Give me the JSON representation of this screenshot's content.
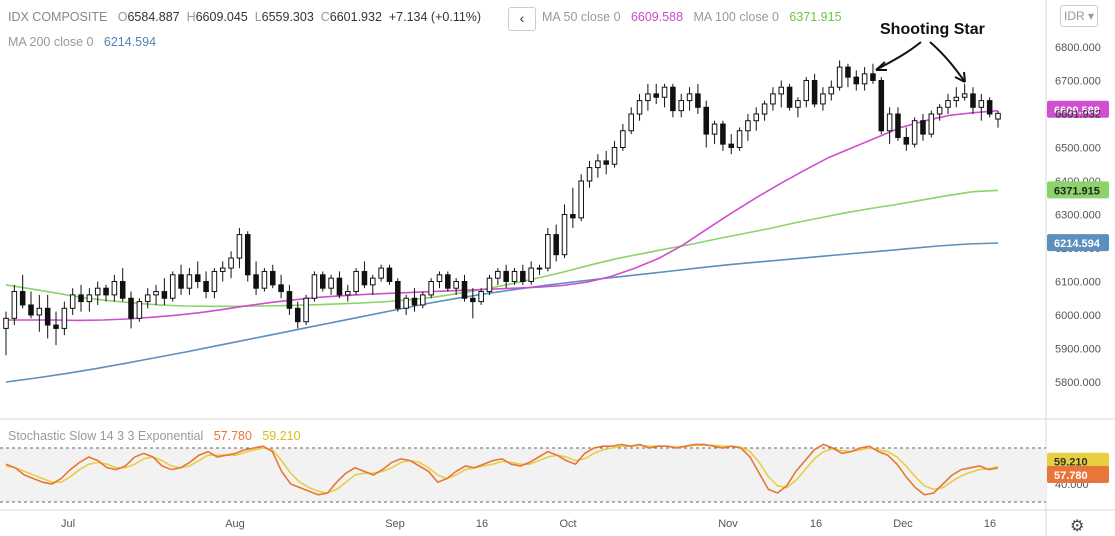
{
  "header": {
    "symbol": "IDX COMPOSITE",
    "open_label": "O",
    "open": "6584.887",
    "high_label": "H",
    "high": "6609.045",
    "low_label": "L",
    "low": "6559.303",
    "close_label": "C",
    "close": "6601.932",
    "change": "+7.134 (+0.11%)",
    "back_icon": "chevron-left-icon",
    "ma50_label": "MA 50 close 0",
    "ma50_value": "6609.588",
    "ma100_label": "MA 100 close 0",
    "ma100_value": "6371.915",
    "ma200_label": "MA 200 close 0",
    "ma200_value": "6214.594",
    "currency": "IDR"
  },
  "stoch": {
    "label": "Stochastic Slow 14 3 3 Exponential",
    "k": "57.780",
    "d": "59.210"
  },
  "annotation": "Shooting Star",
  "settings_icon": "gear-icon",
  "colors": {
    "ma50": "#d04ed0",
    "ma100": "#8bd46b",
    "ma200": "#5b8fbd",
    "stochK": "#e8763a",
    "stochD": "#e8cf42",
    "candle": "#111111"
  },
  "chart_data": {
    "type": "candlestick",
    "x_tick_labels": [
      "Jul",
      "Aug",
      "Sep",
      "16",
      "Oct",
      "Nov",
      "16",
      "Dec",
      "16"
    ],
    "y_tick_labels": [
      "6800.000",
      "6700.000",
      "6600.000",
      "6500.000",
      "6400.000",
      "6300.000",
      "6200.000",
      "6100.000",
      "6000.000",
      "5900.000",
      "5800.000"
    ],
    "ylim": [
      5740,
      6860
    ],
    "price_labels": [
      {
        "value": 6609.588,
        "text": "6609.588",
        "series": "ma50"
      },
      {
        "value": 6601.932,
        "text": "6601.932",
        "series": "last"
      },
      {
        "value": 6371.915,
        "text": "6371.915",
        "series": "ma100"
      },
      {
        "value": 6214.594,
        "text": "6214.594",
        "series": "ma200"
      }
    ],
    "candles_ohlc": [
      [
        5960,
        6010,
        5880,
        5990
      ],
      [
        5990,
        6090,
        5970,
        6070
      ],
      [
        6070,
        6120,
        6020,
        6030
      ],
      [
        6030,
        6070,
        5990,
        6000
      ],
      [
        6000,
        6060,
        5950,
        6020
      ],
      [
        6020,
        6060,
        5930,
        5970
      ],
      [
        5970,
        6010,
        5910,
        5960
      ],
      [
        5960,
        6040,
        5940,
        6020
      ],
      [
        6020,
        6080,
        6000,
        6060
      ],
      [
        6060,
        6090,
        6010,
        6040
      ],
      [
        6040,
        6080,
        6010,
        6060
      ],
      [
        6060,
        6100,
        6030,
        6080
      ],
      [
        6080,
        6090,
        6040,
        6060
      ],
      [
        6060,
        6120,
        6040,
        6100
      ],
      [
        6100,
        6140,
        6040,
        6050
      ],
      [
        6050,
        6070,
        5960,
        5990
      ],
      [
        5990,
        6050,
        5980,
        6040
      ],
      [
        6040,
        6080,
        6020,
        6060
      ],
      [
        6060,
        6090,
        6030,
        6070
      ],
      [
        6070,
        6110,
        6030,
        6050
      ],
      [
        6050,
        6130,
        6040,
        6120
      ],
      [
        6120,
        6150,
        6060,
        6080
      ],
      [
        6080,
        6140,
        6060,
        6120
      ],
      [
        6120,
        6160,
        6080,
        6100
      ],
      [
        6100,
        6130,
        6050,
        6070
      ],
      [
        6070,
        6140,
        6050,
        6130
      ],
      [
        6130,
        6160,
        6100,
        6140
      ],
      [
        6140,
        6190,
        6110,
        6170
      ],
      [
        6170,
        6260,
        6140,
        6240
      ],
      [
        6240,
        6250,
        6100,
        6120
      ],
      [
        6120,
        6160,
        6060,
        6080
      ],
      [
        6080,
        6140,
        6070,
        6130
      ],
      [
        6130,
        6150,
        6080,
        6090
      ],
      [
        6090,
        6120,
        6050,
        6070
      ],
      [
        6070,
        6090,
        6000,
        6020
      ],
      [
        6020,
        6040,
        5960,
        5980
      ],
      [
        5980,
        6060,
        5970,
        6050
      ],
      [
        6050,
        6130,
        6040,
        6120
      ],
      [
        6120,
        6130,
        6070,
        6080
      ],
      [
        6080,
        6120,
        6060,
        6110
      ],
      [
        6110,
        6130,
        6050,
        6060
      ],
      [
        6060,
        6090,
        6040,
        6070
      ],
      [
        6070,
        6140,
        6060,
        6130
      ],
      [
        6130,
        6160,
        6080,
        6090
      ],
      [
        6090,
        6120,
        6060,
        6110
      ],
      [
        6110,
        6150,
        6100,
        6140
      ],
      [
        6140,
        6150,
        6090,
        6100
      ],
      [
        6100,
        6110,
        6010,
        6020
      ],
      [
        6020,
        6060,
        6000,
        6050
      ],
      [
        6050,
        6080,
        6010,
        6030
      ],
      [
        6030,
        6070,
        6020,
        6060
      ],
      [
        6060,
        6110,
        6050,
        6100
      ],
      [
        6100,
        6130,
        6080,
        6120
      ],
      [
        6120,
        6130,
        6070,
        6080
      ],
      [
        6080,
        6110,
        6060,
        6100
      ],
      [
        6100,
        6120,
        6040,
        6050
      ],
      [
        6050,
        6080,
        5990,
        6040
      ],
      [
        6040,
        6080,
        6030,
        6070
      ],
      [
        6070,
        6120,
        6060,
        6110
      ],
      [
        6110,
        6140,
        6090,
        6130
      ],
      [
        6130,
        6150,
        6080,
        6100
      ],
      [
        6100,
        6140,
        6090,
        6130
      ],
      [
        6130,
        6150,
        6090,
        6100
      ],
      [
        6100,
        6160,
        6090,
        6140
      ],
      [
        6140,
        6150,
        6120,
        6140
      ],
      [
        6140,
        6260,
        6130,
        6240
      ],
      [
        6240,
        6270,
        6160,
        6180
      ],
      [
        6180,
        6330,
        6170,
        6300
      ],
      [
        6300,
        6380,
        6260,
        6290
      ],
      [
        6290,
        6420,
        6280,
        6400
      ],
      [
        6400,
        6460,
        6380,
        6440
      ],
      [
        6440,
        6480,
        6410,
        6460
      ],
      [
        6460,
        6490,
        6420,
        6450
      ],
      [
        6450,
        6520,
        6440,
        6500
      ],
      [
        6500,
        6570,
        6490,
        6550
      ],
      [
        6550,
        6620,
        6540,
        6600
      ],
      [
        6600,
        6660,
        6580,
        6640
      ],
      [
        6640,
        6690,
        6610,
        6660
      ],
      [
        6660,
        6690,
        6630,
        6650
      ],
      [
        6650,
        6690,
        6620,
        6680
      ],
      [
        6680,
        6690,
        6590,
        6610
      ],
      [
        6610,
        6660,
        6590,
        6640
      ],
      [
        6640,
        6680,
        6610,
        6660
      ],
      [
        6660,
        6690,
        6600,
        6620
      ],
      [
        6620,
        6640,
        6500,
        6540
      ],
      [
        6540,
        6580,
        6510,
        6570
      ],
      [
        6570,
        6580,
        6490,
        6510
      ],
      [
        6510,
        6540,
        6480,
        6500
      ],
      [
        6500,
        6560,
        6490,
        6550
      ],
      [
        6550,
        6600,
        6520,
        6580
      ],
      [
        6580,
        6620,
        6550,
        6600
      ],
      [
        6600,
        6640,
        6580,
        6630
      ],
      [
        6630,
        6680,
        6610,
        6660
      ],
      [
        6660,
        6700,
        6620,
        6680
      ],
      [
        6680,
        6690,
        6610,
        6620
      ],
      [
        6620,
        6650,
        6590,
        6640
      ],
      [
        6640,
        6710,
        6620,
        6700
      ],
      [
        6700,
        6720,
        6620,
        6630
      ],
      [
        6630,
        6680,
        6610,
        6660
      ],
      [
        6660,
        6700,
        6640,
        6680
      ],
      [
        6680,
        6760,
        6670,
        6740
      ],
      [
        6740,
        6750,
        6680,
        6710
      ],
      [
        6710,
        6730,
        6670,
        6690
      ],
      [
        6690,
        6740,
        6670,
        6720
      ],
      [
        6720,
        6750,
        6690,
        6700
      ],
      [
        6700,
        6710,
        6540,
        6550
      ],
      [
        6550,
        6620,
        6510,
        6600
      ],
      [
        6600,
        6620,
        6520,
        6530
      ],
      [
        6530,
        6560,
        6490,
        6510
      ],
      [
        6510,
        6590,
        6500,
        6580
      ],
      [
        6580,
        6600,
        6520,
        6540
      ],
      [
        6540,
        6610,
        6530,
        6600
      ],
      [
        6600,
        6630,
        6580,
        6620
      ],
      [
        6620,
        6660,
        6600,
        6640
      ],
      [
        6640,
        6680,
        6620,
        6650
      ],
      [
        6650,
        6690,
        6640,
        6660
      ],
      [
        6660,
        6680,
        6600,
        6620
      ],
      [
        6620,
        6660,
        6580,
        6640
      ],
      [
        6640,
        6650,
        6590,
        6600
      ],
      [
        6584.887,
        6609.045,
        6559.303,
        6601.932
      ]
    ],
    "ma50": [
      5985,
      5985,
      5985,
      5984,
      5985,
      5988,
      5993,
      5999,
      6007,
      6017,
      6028,
      6038,
      6046,
      6053,
      6058,
      6062,
      6065,
      6068,
      6071,
      6074,
      6077,
      6080,
      6083,
      6088,
      6098,
      6115,
      6140,
      6170,
      6210,
      6258,
      6305,
      6350,
      6392,
      6432,
      6470,
      6500,
      6530,
      6560,
      6580,
      6596,
      6604,
      6610
    ],
    "ma100": [
      6090,
      6078,
      6065,
      6052,
      6043,
      6036,
      6030,
      6027,
      6026,
      6026,
      6027,
      6028,
      6030,
      6033,
      6036,
      6040,
      6046,
      6055,
      6067,
      6080,
      6095,
      6112,
      6130,
      6150,
      6168,
      6183,
      6198,
      6212,
      6228,
      6243,
      6258,
      6275,
      6290,
      6305,
      6318,
      6330,
      6343,
      6356,
      6368,
      6372
    ],
    "ma200": [
      5800,
      5812,
      5825,
      5840,
      5856,
      5873,
      5890,
      5908,
      5926,
      5944,
      5962,
      5980,
      5998,
      6016,
      6034,
      6050,
      6064,
      6077,
      6089,
      6100,
      6110,
      6120,
      6130,
      6140,
      6150,
      6158,
      6166,
      6174,
      6182,
      6190,
      6198,
      6206,
      6212,
      6215
    ],
    "stoch_range": [
      0,
      100
    ],
    "stoch_levels": [
      80,
      20
    ],
    "stoch_tick_label": "40.000",
    "stoch_k": [
      62,
      58,
      50,
      46,
      42,
      40,
      46,
      56,
      64,
      70,
      66,
      58,
      56,
      60,
      70,
      74,
      70,
      60,
      56,
      58,
      64,
      72,
      76,
      70,
      72,
      74,
      78,
      80,
      82,
      76,
      54,
      40,
      36,
      32,
      28,
      30,
      42,
      52,
      58,
      54,
      50,
      56,
      64,
      68,
      66,
      60,
      54,
      42,
      46,
      54,
      60,
      58,
      62,
      66,
      68,
      62,
      60,
      64,
      70,
      76,
      72,
      66,
      62,
      74,
      80,
      82,
      82,
      84,
      82,
      84,
      80,
      82,
      82,
      80,
      82,
      84,
      84,
      82,
      80,
      82,
      80,
      70,
      52,
      34,
      30,
      38,
      54,
      66,
      78,
      84,
      80,
      74,
      76,
      80,
      82,
      76,
      72,
      62,
      48,
      36,
      28,
      30,
      40,
      50,
      56,
      58,
      60,
      56,
      57.78
    ],
    "stoch_d": [
      60,
      58,
      54,
      50,
      46,
      42,
      42,
      48,
      56,
      62,
      64,
      62,
      58,
      58,
      62,
      68,
      70,
      66,
      60,
      58,
      60,
      66,
      72,
      72,
      72,
      72,
      75,
      78,
      80,
      78,
      66,
      52,
      42,
      36,
      32,
      30,
      34,
      42,
      50,
      52,
      52,
      54,
      58,
      64,
      66,
      64,
      58,
      50,
      46,
      50,
      56,
      58,
      60,
      62,
      65,
      64,
      62,
      62,
      66,
      70,
      72,
      70,
      66,
      68,
      74,
      78,
      80,
      82,
      82,
      83,
      82,
      82,
      82,
      81,
      82,
      83,
      83,
      83,
      82,
      82,
      81,
      76,
      64,
      48,
      38,
      36,
      44,
      56,
      68,
      76,
      79,
      77,
      76,
      78,
      80,
      78,
      76,
      70,
      60,
      48,
      38,
      34,
      36,
      43,
      49,
      53,
      56,
      57,
      59.21
    ]
  }
}
